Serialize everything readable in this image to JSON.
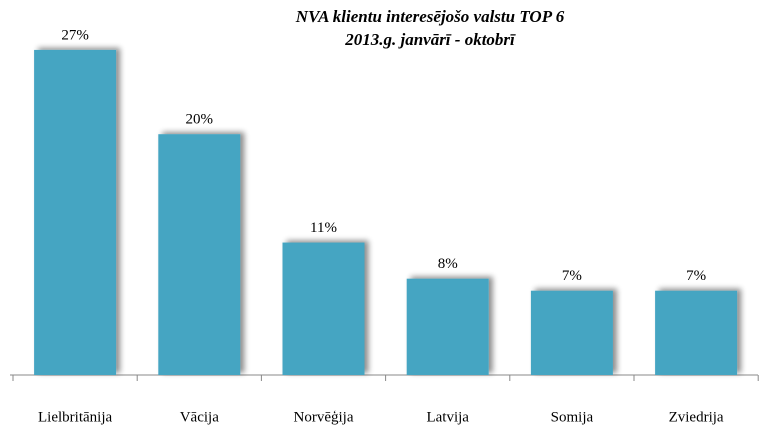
{
  "chart_data": {
    "type": "bar",
    "title": "NVA klientu interesējošo valstu TOP 6",
    "subtitle": "2013.g. janvārī - oktobrī",
    "categories": [
      "Lielbritānija",
      "Vācija",
      "Norvēģija",
      "Latvija",
      "Somija",
      "Zviedrija"
    ],
    "values": [
      27,
      20,
      11,
      8,
      7,
      7
    ],
    "value_labels": [
      "27%",
      "20%",
      "11%",
      "8%",
      "7%",
      "7%"
    ],
    "color": "#45a5c2"
  }
}
